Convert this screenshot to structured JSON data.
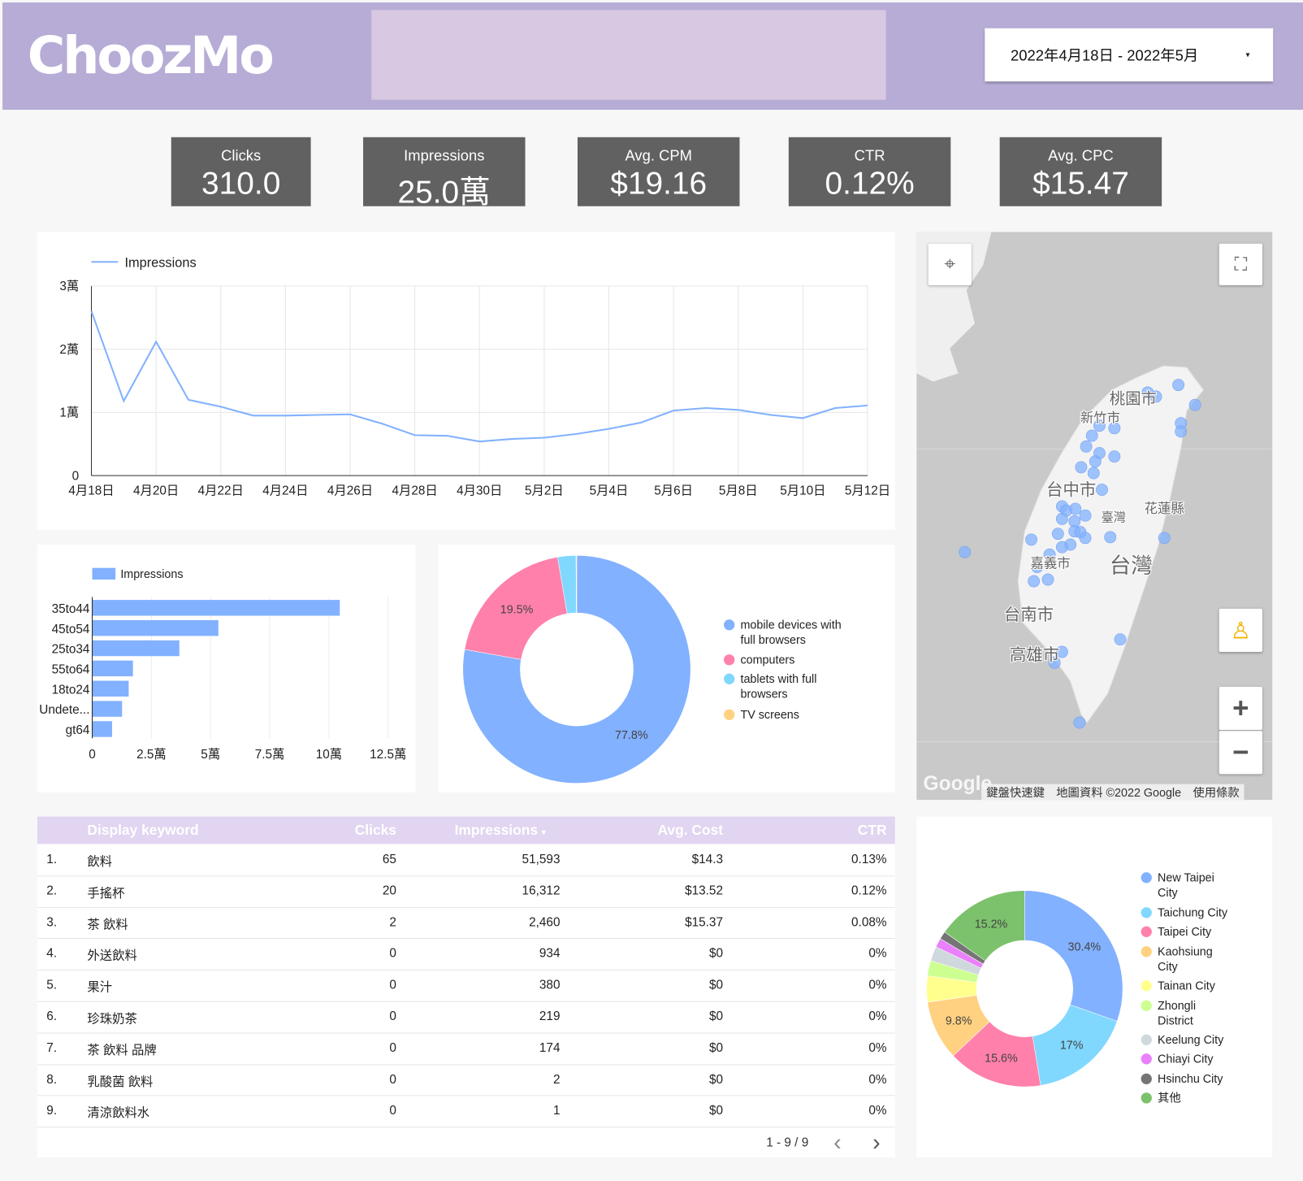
{
  "header": {
    "logo": "ChoozMo",
    "date_range": "2022年4月18日 - 2022年5月",
    "date_caret": "▾"
  },
  "kpis": [
    {
      "label": "Clicks",
      "value": "310.0"
    },
    {
      "label": "Impressions",
      "value": "25.0萬"
    },
    {
      "label": "Avg. CPM",
      "value": "$19.16"
    },
    {
      "label": "CTR",
      "value": "0.12%"
    },
    {
      "label": "Avg. CPC",
      "value": "$15.47"
    }
  ],
  "colors": {
    "header_bg": "#b6acd6",
    "kpi_bg": "#616161",
    "table_header_bg": "#e1d5f1",
    "series_blue": "#82b1ff"
  },
  "chart_data": [
    {
      "type": "line",
      "legend": [
        "Impressions"
      ],
      "legend_position": "top-left",
      "grid": true,
      "x": [
        "4月18日",
        "4月19日",
        "4月20日",
        "4月21日",
        "4月22日",
        "4月23日",
        "4月24日",
        "4月25日",
        "4月26日",
        "4月27日",
        "4月28日",
        "4月29日",
        "4月30日",
        "5月1日",
        "5月2日",
        "5月3日",
        "5月4日",
        "5月5日",
        "5月6日",
        "5月7日",
        "5月8日",
        "5月9日",
        "5月10日",
        "5月11日",
        "5月12日"
      ],
      "x_tick_labels": [
        "4月18日",
        "4月20日",
        "4月22日",
        "4月24日",
        "4月26日",
        "4月28日",
        "4月30日",
        "5月2日",
        "5月4日",
        "5月6日",
        "5月8日",
        "5月10日",
        "5月12日"
      ],
      "series": [
        {
          "name": "Impressions",
          "color": "#82b1ff",
          "values": [
            26000,
            11800,
            21200,
            12000,
            10900,
            9500,
            9500,
            9600,
            9700,
            8200,
            6400,
            6300,
            5400,
            5800,
            6000,
            6600,
            7400,
            8400,
            10300,
            10700,
            10400,
            9600,
            9100,
            10700,
            11100
          ]
        }
      ],
      "ylim": [
        0,
        30000
      ],
      "y_ticks": [
        0,
        10000,
        20000,
        30000
      ],
      "y_tick_labels": [
        "0",
        "1萬",
        "2萬",
        "3萬"
      ]
    },
    {
      "type": "bar",
      "orientation": "horizontal",
      "legend": [
        "Impressions"
      ],
      "legend_position": "top-left",
      "categories": [
        "35to44",
        "45to54",
        "25to34",
        "55to64",
        "18to24",
        "Undete...",
        "gt64"
      ],
      "values": [
        104600,
        53300,
        36800,
        17200,
        15400,
        12600,
        8400
      ],
      "xlim": [
        0,
        125000
      ],
      "x_ticks": [
        0,
        25000,
        50000,
        75000,
        100000,
        125000
      ],
      "x_tick_labels": [
        "0",
        "2.5萬",
        "5萬",
        "7.5萬",
        "10萬",
        "12.5萬"
      ],
      "color": "#82b1ff"
    },
    {
      "type": "pie",
      "donut": true,
      "legend_position": "right",
      "slices": [
        {
          "label": "mobile devices with full browsers",
          "value": 77.8,
          "color": "#82b1ff",
          "data_label": "77.8%"
        },
        {
          "label": "computers",
          "value": 19.5,
          "color": "#ff80ab",
          "data_label": "19.5%"
        },
        {
          "label": "tablets with full browsers",
          "value": 2.6,
          "color": "#80d8ff",
          "data_label": ""
        },
        {
          "label": "TV screens",
          "value": 0.1,
          "color": "#ffd180",
          "data_label": ""
        }
      ]
    },
    {
      "type": "pie",
      "donut": true,
      "legend_position": "right",
      "slices": [
        {
          "label": "New Taipei City",
          "value": 30.4,
          "color": "#82b1ff",
          "data_label": "30.4%"
        },
        {
          "label": "Taichung City",
          "value": 17.0,
          "color": "#80d8ff",
          "data_label": "17%"
        },
        {
          "label": "Taipei City",
          "value": 15.6,
          "color": "#ff80ab",
          "data_label": "15.6%"
        },
        {
          "label": "Kaohsiung City",
          "value": 9.8,
          "color": "#ffd180",
          "data_label": "9.8%"
        },
        {
          "label": "Tainan City",
          "value": 4.3,
          "color": "#ffff8d",
          "data_label": ""
        },
        {
          "label": "Zhongli District",
          "value": 2.5,
          "color": "#ccff90",
          "data_label": ""
        },
        {
          "label": "Keelung City",
          "value": 2.4,
          "color": "#cfd8dc",
          "data_label": ""
        },
        {
          "label": "Chiayi City",
          "value": 1.5,
          "color": "#ea80fc",
          "data_label": ""
        },
        {
          "label": "Hsinchu City",
          "value": 1.3,
          "color": "#757575",
          "data_label": ""
        },
        {
          "label": "其他",
          "value": 15.2,
          "color": "#7cc26c",
          "data_label": "15.2%"
        }
      ]
    }
  ],
  "map": {
    "labels": [
      "桃園市",
      "新竹市",
      "台中市",
      "臺灣",
      "花蓮縣",
      "嘉義市",
      "台灣",
      "台南市",
      "高雄市"
    ],
    "google_logo": "Google",
    "footer": [
      "鍵盤快速鍵",
      "地圖資料 ©2022 Google",
      "使用條款"
    ],
    "zoom_in": "+",
    "zoom_out": "−"
  },
  "table": {
    "columns": [
      "Display keyword",
      "Clicks",
      "Impressions",
      "Avg. Cost",
      "CTR"
    ],
    "sort_indicator": "▾",
    "rows": [
      {
        "n": "1.",
        "keyword": "飲料",
        "clicks": "65",
        "impressions": "51,593",
        "cost": "$14.3",
        "ctr": "0.13%"
      },
      {
        "n": "2.",
        "keyword": "手搖杯",
        "clicks": "20",
        "impressions": "16,312",
        "cost": "$13.52",
        "ctr": "0.12%"
      },
      {
        "n": "3.",
        "keyword": "茶 飲料",
        "clicks": "2",
        "impressions": "2,460",
        "cost": "$15.37",
        "ctr": "0.08%"
      },
      {
        "n": "4.",
        "keyword": "外送飲料",
        "clicks": "0",
        "impressions": "934",
        "cost": "$0",
        "ctr": "0%"
      },
      {
        "n": "5.",
        "keyword": "果汁",
        "clicks": "0",
        "impressions": "380",
        "cost": "$0",
        "ctr": "0%"
      },
      {
        "n": "6.",
        "keyword": "珍珠奶茶",
        "clicks": "0",
        "impressions": "219",
        "cost": "$0",
        "ctr": "0%"
      },
      {
        "n": "7.",
        "keyword": "茶 飲料 品牌",
        "clicks": "0",
        "impressions": "174",
        "cost": "$0",
        "ctr": "0%"
      },
      {
        "n": "8.",
        "keyword": "乳酸菌 飲料",
        "clicks": "0",
        "impressions": "2",
        "cost": "$0",
        "ctr": "0%"
      },
      {
        "n": "9.",
        "keyword": "清涼飲料水",
        "clicks": "0",
        "impressions": "1",
        "cost": "$0",
        "ctr": "0%"
      }
    ],
    "pagination": "1 - 9 / 9",
    "prev": "‹",
    "next": "›"
  }
}
